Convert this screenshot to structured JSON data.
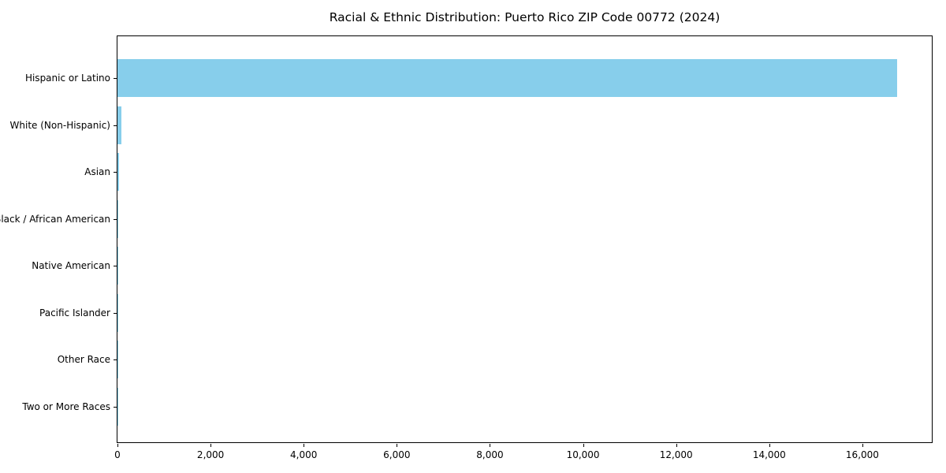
{
  "chart_data": {
    "type": "bar",
    "orientation": "horizontal",
    "title": "Racial & Ethnic Distribution: Puerto Rico ZIP Code 00772 (2024)",
    "xlabel": "",
    "ylabel": "",
    "categories": [
      "Hispanic or Latino",
      "White (Non-Hispanic)",
      "Asian",
      "Black / African American",
      "Native American",
      "Pacific Islander",
      "Other Race",
      "Two or More Races"
    ],
    "values": [
      16743,
      85,
      35,
      25,
      10,
      6,
      3,
      2
    ],
    "bar_color": "#87CEEB",
    "xlim": [
      0,
      17525
    ],
    "xticks": [
      0,
      2000,
      4000,
      6000,
      8000,
      10000,
      12000,
      14000,
      16000
    ],
    "xtick_labels": [
      "0",
      "2,000",
      "4,000",
      "6,000",
      "8,000",
      "10,000",
      "12,000",
      "14,000",
      "16,000"
    ],
    "grid": false,
    "legend": "none",
    "spine_color": "#000000",
    "text_color": "#000000",
    "background_color": "#ffffff"
  }
}
